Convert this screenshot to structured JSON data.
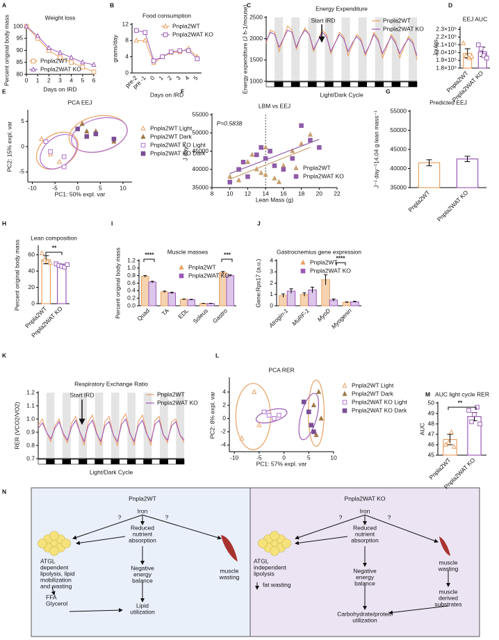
{
  "chart_data": [
    {
      "panel": "A",
      "type": "line",
      "title": "Weight loss",
      "xlabel": "Days on IRD",
      "ylabel": "Percent original body mass",
      "x": [
        0,
        1,
        2,
        3,
        4,
        5,
        6
      ],
      "xlim": [
        0,
        6
      ],
      "xticks": [
        0,
        1,
        2,
        3,
        4,
        5,
        6
      ],
      "ylim": [
        80,
        100
      ],
      "yticks": [
        80,
        85,
        90,
        95,
        100
      ],
      "series": [
        {
          "name": "Pnpla2WT",
          "color": "#e8a060",
          "marker": "square",
          "values": [
            100,
            95,
            90,
            87,
            85,
            83,
            81
          ]
        },
        {
          "name": "Pnpla2WAT KO",
          "color": "#9b59b6",
          "marker": "triangle",
          "values": [
            100,
            96,
            91,
            89,
            87,
            85,
            84
          ]
        }
      ]
    },
    {
      "panel": "B",
      "type": "line",
      "title": "Food consumption",
      "xlabel": "Days on IRD",
      "ylabel": "grams/day",
      "categories": [
        "pre-2",
        "pre -1",
        "0",
        "1",
        "2",
        "3",
        "4",
        "5"
      ],
      "ylim": [
        0,
        12
      ],
      "yticks": [
        0,
        4,
        8,
        12
      ],
      "series": [
        {
          "name": "Pnpla2WT",
          "color": "#e8a060",
          "marker": "triangle",
          "values": [
            8,
            8,
            2.5,
            4,
            5,
            5.2,
            6,
            4
          ]
        },
        {
          "name": "Pnpla2WAT KO",
          "color": "#9b59b6",
          "marker": "square",
          "values": [
            10.5,
            10,
            3,
            4,
            5.2,
            5.5,
            5.5,
            3.5
          ]
        }
      ]
    },
    {
      "panel": "C",
      "type": "line",
      "title": "Energy Expenditure",
      "xlabel": "Light/Dark Cycle",
      "ylabel": "Energy expenditure (J h-1/mouse)",
      "ylim": [
        1000,
        2500
      ],
      "yticks": [
        1000,
        1500,
        2000,
        2500
      ],
      "annotations": [
        "Start IRD"
      ],
      "series": [
        {
          "name": "Pnpla2WT",
          "color": "#e8a060",
          "values": [
            1900,
            2200,
            2150,
            1700,
            2000,
            2300,
            2200,
            1750,
            2050,
            2250,
            2100,
            1700,
            1950,
            2200,
            2100,
            1650,
            1900,
            2150,
            2050,
            1600,
            1850,
            2100,
            2000,
            1600,
            1850,
            2150,
            2000,
            1550,
            1800,
            2100,
            1950,
            1550,
            1800,
            2050,
            1950,
            1500
          ]
        },
        {
          "name": "Pnpla2WAT KO",
          "color": "#9b59b6",
          "values": [
            1950,
            2150,
            2100,
            1800,
            2000,
            2200,
            2150,
            1800,
            2050,
            2200,
            2100,
            1750,
            1950,
            2150,
            2050,
            1700,
            1900,
            2100,
            2000,
            1700,
            1900,
            2050,
            1950,
            1650,
            1850,
            2100,
            1950,
            1650,
            1850,
            2050,
            1900,
            1650,
            1850,
            2000,
            1900,
            1600
          ]
        }
      ]
    },
    {
      "panel": "D",
      "type": "bar",
      "title": "EEJ AUC",
      "ylabel": "Joules",
      "categories": [
        "Pnpla2WT",
        "Pnpla2WAT KO"
      ],
      "values": [
        199000,
        201000
      ],
      "errors": [
        6000,
        6000
      ],
      "colors": [
        "#e8a060",
        "#9b59b6"
      ],
      "fills": [
        "#ffffff",
        "#ffffff"
      ],
      "points": [
        [
          212000,
          196000,
          193000,
          195000
        ],
        [
          210000,
          205000,
          196000,
          193000
        ]
      ],
      "ylim": [
        180000,
        232000
      ],
      "yticks": [
        {
          "value": 180000,
          "label": "1.8×10⁵"
        },
        {
          "value": 190000,
          "label": "1.9×10⁵"
        },
        {
          "value": 200000,
          "label": "2.0×10⁵"
        },
        {
          "value": 210000,
          "label": "2.1×10⁵"
        },
        {
          "value": 220000,
          "label": "2.2×10⁵"
        },
        {
          "value": 230000,
          "label": "2.3×10⁵"
        }
      ]
    },
    {
      "panel": "E",
      "type": "scatter",
      "title": "PCA EEJ",
      "xlabel": "PC1: 50% expl. var",
      "ylabel": "PC2: 15% expl. var",
      "xlim": [
        -11,
        12
      ],
      "xticks": [
        -10,
        -5,
        0,
        5,
        10
      ],
      "ylim": [
        -7,
        7
      ],
      "yticks": [
        -5,
        0,
        5
      ],
      "series": [
        {
          "name": "Pnpla2WT Light",
          "color": "#e8a060",
          "marker": "triangle",
          "filled": false,
          "x": [
            -6,
            -4,
            -8
          ],
          "values": [
            -1.5,
            -3,
            1.5
          ]
        },
        {
          "name": "Pnpla2WT Dark",
          "color": "#a07848",
          "marker": "triangle",
          "filled": true,
          "x": [
            1,
            2,
            4,
            8
          ],
          "values": [
            4.5,
            3,
            3,
            1
          ]
        },
        {
          "name": "Pnpla2WAT KO Light",
          "color": "#b070d0",
          "marker": "square",
          "filled": false,
          "x": [
            -7,
            -6,
            -3,
            -3
          ],
          "values": [
            1,
            -1,
            -4,
            -2
          ]
        },
        {
          "name": "Pnpla2WAT KO Dark",
          "color": "#7a4f96",
          "marker": "square",
          "filled": true,
          "x": [
            0,
            2,
            4,
            8
          ],
          "values": [
            3.5,
            2,
            2.5,
            1.5
          ]
        }
      ]
    },
    {
      "panel": "F",
      "type": "scatter",
      "title": "LBM vs EEJ",
      "xlabel": "Lean Mass (g)",
      "ylabel": "J day⁻¹",
      "fit": true,
      "annotations": [
        "P=0.5838"
      ],
      "xlim": [
        8,
        22
      ],
      "xticks": [
        8,
        10,
        12,
        14,
        16,
        18,
        20,
        22
      ],
      "ylim": [
        35000,
        55000
      ],
      "yticks": [
        35000,
        40000,
        45000,
        50000,
        55000
      ],
      "series": [
        {
          "name": "Pnpla2WT",
          "color": "#c8a070",
          "marker": "triangle",
          "filled": true,
          "x": [
            10,
            11,
            12,
            12.5,
            13,
            13.5,
            14,
            14,
            15,
            15.5,
            16,
            17,
            18,
            19
          ],
          "values": [
            38000,
            37000,
            42000,
            44000,
            40000,
            39000,
            38500,
            46000,
            37500,
            36500,
            41000,
            45000,
            47000,
            49500
          ]
        },
        {
          "name": "Pnpla2WAT KO",
          "color": "#8e5ca8",
          "marker": "square",
          "filled": true,
          "x": [
            10,
            11,
            11.5,
            12,
            13,
            13.5,
            14,
            14.5,
            15,
            16,
            17,
            18,
            19,
            20
          ],
          "values": [
            36500,
            40000,
            42000,
            38000,
            44000,
            46000,
            43000,
            45000,
            41000,
            40000,
            43000,
            52000,
            48000,
            46000
          ]
        }
      ]
    },
    {
      "panel": "G",
      "type": "bar",
      "title": "Predicted EEJ",
      "ylabel": "J⁻¹ day⁻¹14.04 g lean mass⁻¹",
      "categories": [
        "Pnpla2WT",
        "Pnpla2WAT KO"
      ],
      "values": [
        41500,
        42500
      ],
      "errors": [
        800,
        700
      ],
      "colors": [
        "#e8a060",
        "#9b59b6"
      ],
      "fills": [
        "#ffffff",
        "#ffffff"
      ],
      "ylim": [
        35000,
        55000
      ],
      "yticks": [
        35000,
        40000,
        45000,
        50000,
        55000
      ]
    },
    {
      "panel": "H",
      "type": "bar",
      "title": "Lean composition",
      "ylabel": "Percent original body mass",
      "categories": [
        "Pnpla2WT",
        "Pnpla2WAT KO"
      ],
      "values": [
        54,
        47
      ],
      "errors": [
        5,
        1.5
      ],
      "colors": [
        "#e8a060",
        "#9b59b6"
      ],
      "fills": [
        "#ffffff",
        "#ffffff"
      ],
      "annotations": [
        "**"
      ],
      "points": [
        [
          62,
          54,
          52,
          50
        ],
        [
          49,
          47,
          46,
          45,
          48
        ]
      ],
      "ylim": [
        0,
        70
      ],
      "yticks": [
        0,
        20,
        40,
        60
      ]
    },
    {
      "panel": "I",
      "type": "grouped_bar",
      "title": "Muscle masses",
      "ylabel": "Percent original body mass",
      "categories": [
        "Quad",
        "TA",
        "EDL",
        "Soleus",
        "Gastro"
      ],
      "ylim": [
        0,
        1.2
      ],
      "yticks": [
        {
          "value": 0,
          "label": "0.0"
        },
        0.2,
        0.4,
        0.6,
        0.8,
        {
          "value": 1,
          "label": "1.0"
        },
        1.2
      ],
      "annotations": [
        "****",
        "***"
      ],
      "series": [
        {
          "name": "Pnpla2WT",
          "color": "#e8a060",
          "fill": "#f6d3b0",
          "marker": "triangle",
          "values": [
            0.78,
            0.37,
            0.17,
            0.06,
            0.88
          ],
          "errors": [
            0.02,
            0.02,
            0.01,
            0.005,
            0.03
          ]
        },
        {
          "name": "Pnpla2WAT KO",
          "color": "#9b59b6",
          "fill": "#dcc6ea",
          "marker": "square",
          "values": [
            0.63,
            0.34,
            0.16,
            0.06,
            0.8
          ],
          "errors": [
            0.02,
            0.02,
            0.01,
            0.005,
            0.02
          ]
        }
      ]
    },
    {
      "panel": "J",
      "type": "grouped_bar",
      "title": "Gastrocnemius gene expression",
      "ylabel": "Gene:Rps17 (a.u.)",
      "categories": [
        "Atrogin-1",
        "MuRF-1",
        "MyoD",
        "Myogenin"
      ],
      "ylim": [
        0,
        4
      ],
      "yticks": [
        0,
        1,
        2,
        3,
        4
      ],
      "annotations": [
        "****"
      ],
      "series": [
        {
          "name": "Pnpla2WT",
          "color": "#e8a060",
          "fill": "#f6d3b0",
          "marker": "triangle",
          "values": [
            0.9,
            1.0,
            2.3,
            0.3
          ],
          "errors": [
            0.15,
            0.15,
            0.45,
            0.05
          ]
        },
        {
          "name": "Pnpla2WAT KO",
          "color": "#9b59b6",
          "fill": "#dcc6ea",
          "marker": "square",
          "values": [
            1.3,
            1.4,
            0.5,
            0.35
          ],
          "errors": [
            0.2,
            0.25,
            0.1,
            0.05
          ]
        }
      ]
    },
    {
      "panel": "K",
      "type": "line",
      "title": "Respiratory Exchange Ratio",
      "xlabel": "Light/Dark Cycle",
      "ylabel": "RER (VCO2/VO2)",
      "ylim": [
        0.7,
        1.2
      ],
      "yticks": [
        0.7,
        0.8,
        0.9,
        {
          "value": 1,
          "label": "1.0"
        },
        1.1,
        1.2
      ],
      "annotations": [
        "Start IRD"
      ],
      "series": [
        {
          "name": "Pnpla2WT",
          "color": "#f0a070",
          "values": [
            0.95,
            1.0,
            0.9,
            0.83,
            0.95,
            1.0,
            0.88,
            0.82,
            0.97,
            1.02,
            0.9,
            0.8,
            0.98,
            1.03,
            0.9,
            0.8,
            0.98,
            1.02,
            0.88,
            0.8,
            0.99,
            1.04,
            0.9,
            0.8,
            0.98,
            1.03,
            0.9,
            0.8,
            0.99,
            1.02,
            0.88,
            0.82,
            0.98,
            1.0,
            0.88,
            0.82
          ]
        },
        {
          "name": "Pnpla2WAT KO",
          "color": "#9b59b6",
          "values": [
            0.93,
            0.97,
            0.9,
            0.85,
            0.93,
            0.98,
            0.89,
            0.84,
            0.94,
            0.99,
            0.9,
            0.83,
            0.95,
            0.99,
            0.89,
            0.83,
            0.95,
            0.98,
            0.88,
            0.83,
            0.96,
            1.0,
            0.89,
            0.83,
            0.95,
            0.99,
            0.89,
            0.83,
            0.96,
            0.99,
            0.88,
            0.84,
            0.95,
            0.98,
            0.88,
            0.84
          ]
        }
      ]
    },
    {
      "panel": "L",
      "type": "scatter",
      "title": "PCA RER",
      "xlabel": "PC1: 57% expl. var",
      "ylabel": "PC2: 8% expl. var",
      "xlim": [
        -11,
        10
      ],
      "xticks": [
        -10,
        -5,
        0,
        5,
        10
      ],
      "ylim": [
        -5,
        6
      ],
      "yticks": [
        -4,
        -2,
        0,
        2,
        4
      ],
      "series": [
        {
          "name": "Pnpla2WT Light",
          "color": "#e8a060",
          "marker": "triangle",
          "filled": false,
          "x": [
            -6,
            -8.5,
            -5
          ],
          "values": [
            4,
            -3,
            -1
          ]
        },
        {
          "name": "Pnpla2WT Dark",
          "color": "#a07848",
          "marker": "triangle",
          "filled": true,
          "x": [
            7,
            6,
            7.5,
            6.5
          ],
          "values": [
            4,
            2,
            0,
            -2.5
          ]
        },
        {
          "name": "Pnpla2WAT KO Light",
          "color": "#b070d0",
          "marker": "square",
          "filled": false,
          "x": [
            -4,
            -2,
            -1,
            -3
          ],
          "values": [
            1,
            0,
            0.5,
            0.5
          ]
        },
        {
          "name": "Pnpla2WAT KO Dark",
          "color": "#7a4f96",
          "marker": "square",
          "filled": true,
          "x": [
            4,
            5,
            5.5,
            6
          ],
          "values": [
            2.5,
            1,
            -1,
            -2
          ]
        }
      ]
    },
    {
      "panel": "M",
      "type": "bar",
      "title": "AUC light cycle RER",
      "ylabel": "AUC",
      "categories": [
        "Pnpla2WT",
        "Pnpla2WAT KO"
      ],
      "values": [
        46.5,
        48.7
      ],
      "errors": [
        0.5,
        0.4
      ],
      "colors": [
        "#e8a060",
        "#9b59b6"
      ],
      "fills": [
        "#ffffff",
        "#ffffff"
      ],
      "annotations": [
        "**"
      ],
      "points": [
        [
          46.0,
          46.2,
          47.2,
          45.8
        ],
        [
          49.3,
          48.2,
          48.9,
          49.6,
          48.0
        ]
      ],
      "ylim": [
        45,
        50
      ],
      "yticks": [
        45,
        46,
        47,
        48,
        49,
        50
      ]
    }
  ],
  "diagram": {
    "panel": "N",
    "left": {
      "title": "Pnpla2WT",
      "nodes": [
        {
          "lines": [
            "?"
          ]
        },
        {
          "lines": [
            "Iron"
          ]
        },
        {
          "lines": [
            "?"
          ]
        },
        {
          "lines": [
            "Reduced",
            "nutrient",
            "absorption"
          ]
        },
        {
          "lines": [
            "muscle",
            "wasting"
          ]
        },
        {
          "lines": [
            "ATGL",
            "dependent",
            "lipolysis, lipid",
            "mobilization",
            "and wasting"
          ]
        },
        {
          "lines": [
            "Negative",
            "energy",
            "balance"
          ]
        },
        {
          "lines": [
            "FFA",
            "Glycerol"
          ]
        },
        {
          "lines": [
            "Lipid",
            "utilization"
          ]
        }
      ]
    },
    "right": {
      "title": "Pnpla2WAT KO",
      "nodes": [
        {
          "lines": [
            "?"
          ]
        },
        {
          "lines": [
            "Iron"
          ]
        },
        {
          "lines": [
            "?"
          ]
        },
        {
          "lines": [
            "Reduced",
            "nutrient",
            "absorption"
          ]
        },
        {
          "lines": [
            "muscle",
            "wasting"
          ]
        },
        {
          "lines": [
            "ATGL",
            "independent",
            "lipolysis"
          ]
        },
        {
          "lines": [
            "fat wasting"
          ]
        },
        {
          "lines": [
            "Negative",
            "energy",
            "balance"
          ]
        },
        {
          "lines": [
            "muscle",
            "derived",
            "substrates"
          ]
        },
        {
          "lines": [
            "Carbohydrate/protein",
            "utilization"
          ]
        }
      ]
    }
  }
}
